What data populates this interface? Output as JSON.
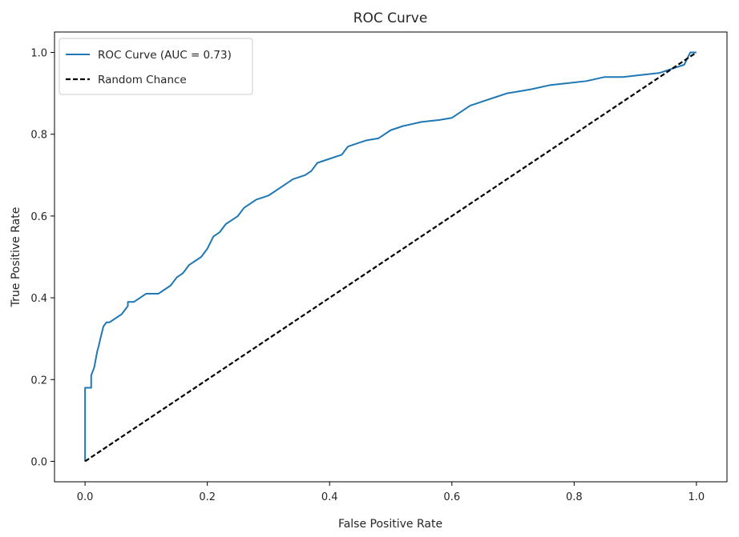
{
  "chart_data": {
    "type": "line",
    "title": "ROC Curve",
    "xlabel": "False Positive Rate",
    "ylabel": "True Positive Rate",
    "xlim": [
      -0.05,
      1.05
    ],
    "ylim": [
      -0.05,
      1.05
    ],
    "x_ticks": [
      "0.0",
      "0.2",
      "0.4",
      "0.6",
      "0.8",
      "1.0"
    ],
    "y_ticks": [
      "0.0",
      "0.2",
      "0.4",
      "0.6",
      "0.8",
      "1.0"
    ],
    "grid": false,
    "legend_position": "upper-left",
    "series": [
      {
        "name": "ROC Curve (AUC = 0.73)",
        "color": "#1f77b4",
        "style": "solid",
        "x": [
          0.0,
          0.0,
          0.0,
          0.01,
          0.01,
          0.015,
          0.02,
          0.022,
          0.025,
          0.03,
          0.035,
          0.04,
          0.045,
          0.05,
          0.06,
          0.07,
          0.07,
          0.08,
          0.09,
          0.1,
          0.12,
          0.13,
          0.14,
          0.15,
          0.16,
          0.17,
          0.18,
          0.19,
          0.2,
          0.21,
          0.22,
          0.23,
          0.24,
          0.25,
          0.26,
          0.27,
          0.28,
          0.29,
          0.3,
          0.32,
          0.34,
          0.36,
          0.37,
          0.38,
          0.4,
          0.42,
          0.43,
          0.45,
          0.46,
          0.48,
          0.5,
          0.52,
          0.55,
          0.58,
          0.6,
          0.62,
          0.63,
          0.64,
          0.65,
          0.67,
          0.69,
          0.71,
          0.73,
          0.76,
          0.79,
          0.82,
          0.85,
          0.88,
          0.91,
          0.94,
          0.96,
          0.98,
          0.99,
          1.0
        ],
        "y": [
          0.0,
          0.15,
          0.18,
          0.18,
          0.21,
          0.23,
          0.27,
          0.28,
          0.3,
          0.33,
          0.34,
          0.34,
          0.345,
          0.35,
          0.36,
          0.38,
          0.39,
          0.39,
          0.4,
          0.41,
          0.41,
          0.42,
          0.43,
          0.45,
          0.46,
          0.48,
          0.49,
          0.5,
          0.52,
          0.55,
          0.56,
          0.58,
          0.59,
          0.6,
          0.62,
          0.63,
          0.64,
          0.645,
          0.65,
          0.67,
          0.69,
          0.7,
          0.71,
          0.73,
          0.74,
          0.75,
          0.77,
          0.78,
          0.785,
          0.79,
          0.81,
          0.82,
          0.83,
          0.835,
          0.84,
          0.86,
          0.87,
          0.875,
          0.88,
          0.89,
          0.9,
          0.905,
          0.91,
          0.92,
          0.925,
          0.93,
          0.94,
          0.94,
          0.945,
          0.95,
          0.96,
          0.97,
          1.0,
          1.0
        ]
      },
      {
        "name": "Random Chance",
        "color": "#000000",
        "style": "dashed",
        "x": [
          0.0,
          1.0
        ],
        "y": [
          0.0,
          1.0
        ]
      }
    ]
  }
}
